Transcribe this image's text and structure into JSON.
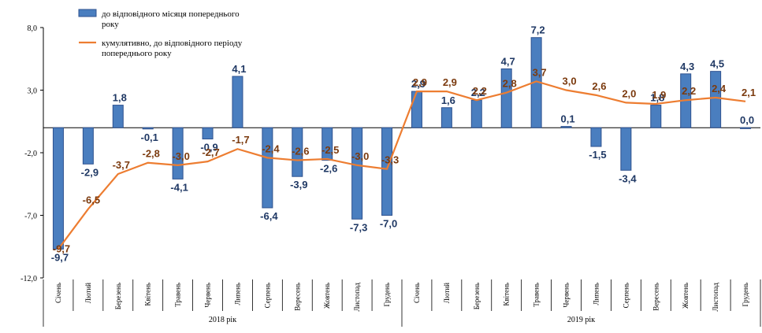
{
  "chart_data": {
    "type": "bar",
    "categories": [
      "Січень",
      "Лютий",
      "Березень",
      "Квітень",
      "Травень",
      "Червень",
      "Липень",
      "Серпень",
      "Вересень",
      "Жовтень",
      "Листопад",
      "Грудень",
      "Січень",
      "Лютий",
      "Березень",
      "Квітень",
      "Травень",
      "Червень",
      "Липень",
      "Серпень",
      "Вересень",
      "Жовтень",
      "Листопад",
      "Грудень"
    ],
    "groups": [
      {
        "label": "2018 рік",
        "from": 0,
        "to": 11
      },
      {
        "label": "2019 рік",
        "from": 12,
        "to": 23
      }
    ],
    "series": [
      {
        "name": "до відповідного місяця попереднього року",
        "kind": "bar",
        "color": "#4a7ebf",
        "values": [
          -9.7,
          -2.9,
          1.8,
          -0.1,
          -4.1,
          -0.9,
          4.1,
          -6.4,
          -3.9,
          -2.6,
          -7.3,
          -7.0,
          2.9,
          1.6,
          2.2,
          4.7,
          7.2,
          0.1,
          -1.5,
          -3.4,
          1.8,
          4.3,
          4.5,
          0.0
        ],
        "labels": [
          "-9,7",
          "-2,9",
          "1,8",
          "-0,1",
          "-4,1",
          "-0,9",
          "4,1",
          "-6,4",
          "-3,9",
          "-2,6",
          "-7,3",
          "-7,0",
          "2,9",
          "1,6",
          "2,2",
          "4,7",
          "7,2",
          "0,1",
          "-1,5",
          "-3,4",
          "1,8",
          "4,3",
          "4,5",
          "0,0"
        ]
      },
      {
        "name": "кумулятивно, до відповідного періоду попереднього року",
        "kind": "line",
        "color": "#ed7d31",
        "values": [
          -9.7,
          -6.5,
          -3.7,
          -2.8,
          -3.0,
          -2.7,
          -1.7,
          -2.4,
          -2.6,
          -2.5,
          -3.0,
          -3.3,
          2.9,
          2.9,
          2.2,
          2.8,
          3.7,
          3.0,
          2.6,
          2.0,
          1.9,
          2.2,
          2.4,
          2.1
        ],
        "labels": [
          "-9,7",
          "-6,5",
          "-3,7",
          "-2,8",
          "-3,0",
          "-2,7",
          "-1,7",
          "-2,4",
          "-2,6",
          "-2,5",
          "-3,0",
          "-3,3",
          "2,9",
          "2,9",
          "2,2",
          "2,8",
          "3,7",
          "3,0",
          "2,6",
          "2,0",
          "1,9",
          "2,2",
          "2,4",
          "2,1"
        ]
      }
    ],
    "yticks": [
      "8,0",
      "3,0",
      "-2,0",
      "-7,0",
      "-12,0"
    ],
    "ytick_values": [
      8,
      3,
      -2,
      -7,
      -12
    ],
    "ylim": [
      -12,
      8
    ],
    "legend": "top-left",
    "grid": false
  }
}
